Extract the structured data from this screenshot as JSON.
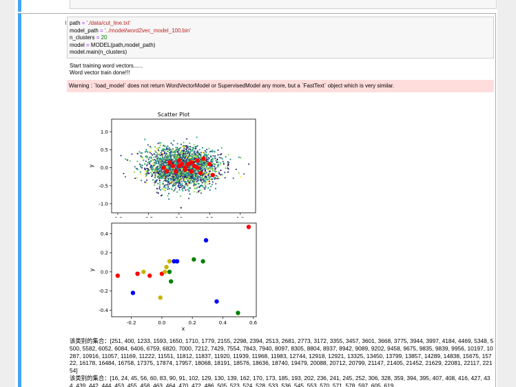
{
  "cell": {
    "prompt": "In [18]:",
    "code": {
      "line1": {
        "var": "path",
        "op": " = ",
        "str": "'./data/cut_line.txt'"
      },
      "line2": {
        "var": "model_path",
        "op": " = ",
        "str": "'../model/word2vec_model_100.bin'"
      },
      "line3": {
        "var": "n_clusters",
        "op": " = ",
        "num": "20"
      },
      "line4": {
        "var": "model",
        "op": " = ",
        "rest": "MODEL(path,model_path)"
      },
      "line5": "model.main(n_clusters)"
    },
    "stdout": [
      "Start training word vectors......",
      "Word vector train done!!!"
    ],
    "warning": "Warning : `load_model` does not return WordVectorModel or SupervisedModel any more, but a `FastText` object which is very similar."
  },
  "colors": {
    "prompt": "#303f9f",
    "string": "#ba2121",
    "number": "#008000",
    "warning_bg": "#ffdddd",
    "accent_bar": "#42a5f5"
  },
  "chart_data": [
    {
      "type": "scatter",
      "title": "Scatter Plot",
      "xlabel": "x",
      "ylabel": "y",
      "xlim": [
        -1.1,
        1.25
      ],
      "ylim": [
        -1.25,
        1.35
      ],
      "xticks": [
        "-1.0",
        "-0.5",
        "0.0",
        "0.5",
        "1.0"
      ],
      "xtick_values": [
        -1.0,
        -0.5,
        0.0,
        0.5,
        1.0
      ],
      "yticks": [
        "1.0",
        "0.5",
        "0.0",
        "-0.5",
        "-1.0"
      ],
      "ytick_values": [
        1.0,
        0.5,
        0.0,
        -0.5,
        -1.0
      ],
      "cluster_palette": [
        "#440154",
        "#3b528b",
        "#21918c",
        "#5ec962",
        "#fde725",
        "#31688e",
        "#35b779",
        "#2a788e",
        "#443a83",
        "#90d743",
        "#22a884",
        "#414487"
      ],
      "cloud_center": [
        0.05,
        0.0
      ],
      "cloud_spread": [
        0.28,
        0.26
      ],
      "cloud_point_count": 2600,
      "centroid_color": "#ff0000",
      "centroids": [
        [
          -0.25,
          0.0
        ],
        [
          -0.2,
          -0.1
        ],
        [
          -0.1,
          0.05
        ],
        [
          0.0,
          0.05
        ],
        [
          0.05,
          0.1
        ],
        [
          0.1,
          0.0
        ],
        [
          0.15,
          0.1
        ],
        [
          0.2,
          0.15
        ],
        [
          0.25,
          0.05
        ],
        [
          0.3,
          0.2
        ],
        [
          0.35,
          -0.15
        ],
        [
          0.4,
          0.25
        ],
        [
          0.5,
          0.1
        ],
        [
          0.55,
          -0.2
        ],
        [
          -0.05,
          -0.1
        ],
        [
          0.1,
          -0.05
        ],
        [
          0.2,
          -0.1
        ],
        [
          0.0,
          0.2
        ],
        [
          -0.15,
          0.15
        ],
        [
          0.3,
          0.0
        ]
      ]
    },
    {
      "type": "scatter",
      "title": "",
      "xlabel": "x",
      "ylabel": "y",
      "xlim": [
        -0.33,
        0.62
      ],
      "ylim": [
        -0.47,
        0.51
      ],
      "xticks": [
        "-0.2",
        "0.0",
        "0.2",
        "0.4",
        "0.6"
      ],
      "xtick_values": [
        -0.2,
        0.0,
        0.2,
        0.4,
        0.6
      ],
      "yticks": [
        "0.4",
        "0.2",
        "0.0",
        "-0.2",
        "-0.4"
      ],
      "ytick_values": [
        0.4,
        0.2,
        0.0,
        -0.2,
        -0.4
      ],
      "series": [
        {
          "color": "#ff0000",
          "points": [
            [
              -0.29,
              -0.04
            ],
            [
              -0.16,
              -0.02
            ],
            [
              -0.08,
              -0.04
            ],
            [
              0.0,
              -0.02
            ],
            [
              0.57,
              0.47
            ]
          ]
        },
        {
          "color": "#0000ff",
          "points": [
            [
              -0.19,
              -0.22
            ],
            [
              0.08,
              0.11
            ],
            [
              0.1,
              0.11
            ],
            [
              0.29,
              0.33
            ],
            [
              0.36,
              -0.31
            ]
          ]
        },
        {
          "color": "#008000",
          "points": [
            [
              0.05,
              0.0
            ],
            [
              0.06,
              -0.1
            ],
            [
              0.21,
              0.13
            ],
            [
              0.27,
              0.11
            ],
            [
              0.5,
              -0.43
            ]
          ]
        },
        {
          "color": "#c8b400",
          "points": [
            [
              -0.12,
              0.0
            ],
            [
              -0.01,
              -0.27
            ],
            [
              0.02,
              0.0
            ],
            [
              0.03,
              0.05
            ],
            [
              0.05,
              0.11
            ]
          ]
        }
      ]
    }
  ],
  "results": [
    "该类别的集合：[251, 400, 1233, 1593, 1650, 1710, 1779, 2155, 2298, 2394, 2513, 2681, 2773, 3172, 3355, 3457, 3601, 3668, 3775, 3944, 3997, 4184, 4469, 5348, 5500, 5582, 6052, 6084, 6406, 6759, 6820, 7000, 7212, 7429, 7554, 7843, 7940, 8097, 8305, 8804, 8937, 8942, 9089, 9202, 9458, 9675, 9835, 9839, 9956, 10197, 10287, 10916, 11057, 11169, 11222, 11551, 11812, 11837, 11920, 11939, 11968, 11983, 12744, 12918, 12921, 13325, 13450, 13799, 13857, 14289, 14838, 15675, 15722, 16178, 16484, 16758, 17375, 17874, 17957, 18068, 18191, 18576, 18636, 18740, 19479, 20088, 20712, 20799, 21147, 21405, 21452, 21629, 22081, 22117, 22154]",
    "该类别的集合：[16, 24, 45, 56, 60, 83, 90, 91, 102, 129, 130, 139, 162, 170, 173, 185, 193, 202, 236, 241, 245, 252, 306, 328, 359, 394, 395, 407, 408, 416, 427, 434, 439, 442, 444, 453, 455, 458, 463, 464, 470, 472, 486, 505, 523, 524, 528, 533, 536, 545, 553, 570, 571, 578, 597, 605, 619,"
  ]
}
